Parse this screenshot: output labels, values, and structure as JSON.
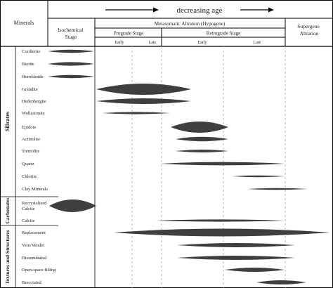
{
  "header": {
    "age_label": "decreasing age",
    "minerals": "Minerals",
    "isochemical": [
      "Isochemical",
      "Stage"
    ],
    "metasomatic": "Metasomatic Altration (Hypogene)",
    "prograde": "Prograde Stage",
    "retrograde": "Retrograde Stage",
    "supergene": [
      "Supergene",
      "Altration"
    ],
    "early": "Early",
    "late": "Late"
  },
  "groups": {
    "silicates": "Silicates",
    "carbonates": "Carbonates",
    "textures": "Textures and Structures"
  },
  "rows": [
    {
      "label": "Cordierite"
    },
    {
      "label": "Biotite"
    },
    {
      "label": "Hornblende"
    },
    {
      "label": "Grandite"
    },
    {
      "label": "Hedenbergite"
    },
    {
      "label": "Wollastonite"
    },
    {
      "label": "Epidote"
    },
    {
      "label": "Actinolite"
    },
    {
      "label": "Tremolite"
    },
    {
      "label": "Quartz"
    },
    {
      "label": "Chlorite"
    },
    {
      "label": "Clay Minerals"
    },
    {
      "label": [
        "Recrystalized",
        "Calcite"
      ]
    },
    {
      "label": "Calcite"
    },
    {
      "label": "Replacement"
    },
    {
      "label": "Vein/Veinlet"
    },
    {
      "label": "Disseminated"
    },
    {
      "label": "Open-space filling"
    },
    {
      "label": "Brecciated"
    }
  ],
  "colors": {
    "bar": "#3f3f3f",
    "line": "#000000",
    "dashed": "#bdbdbd"
  }
}
